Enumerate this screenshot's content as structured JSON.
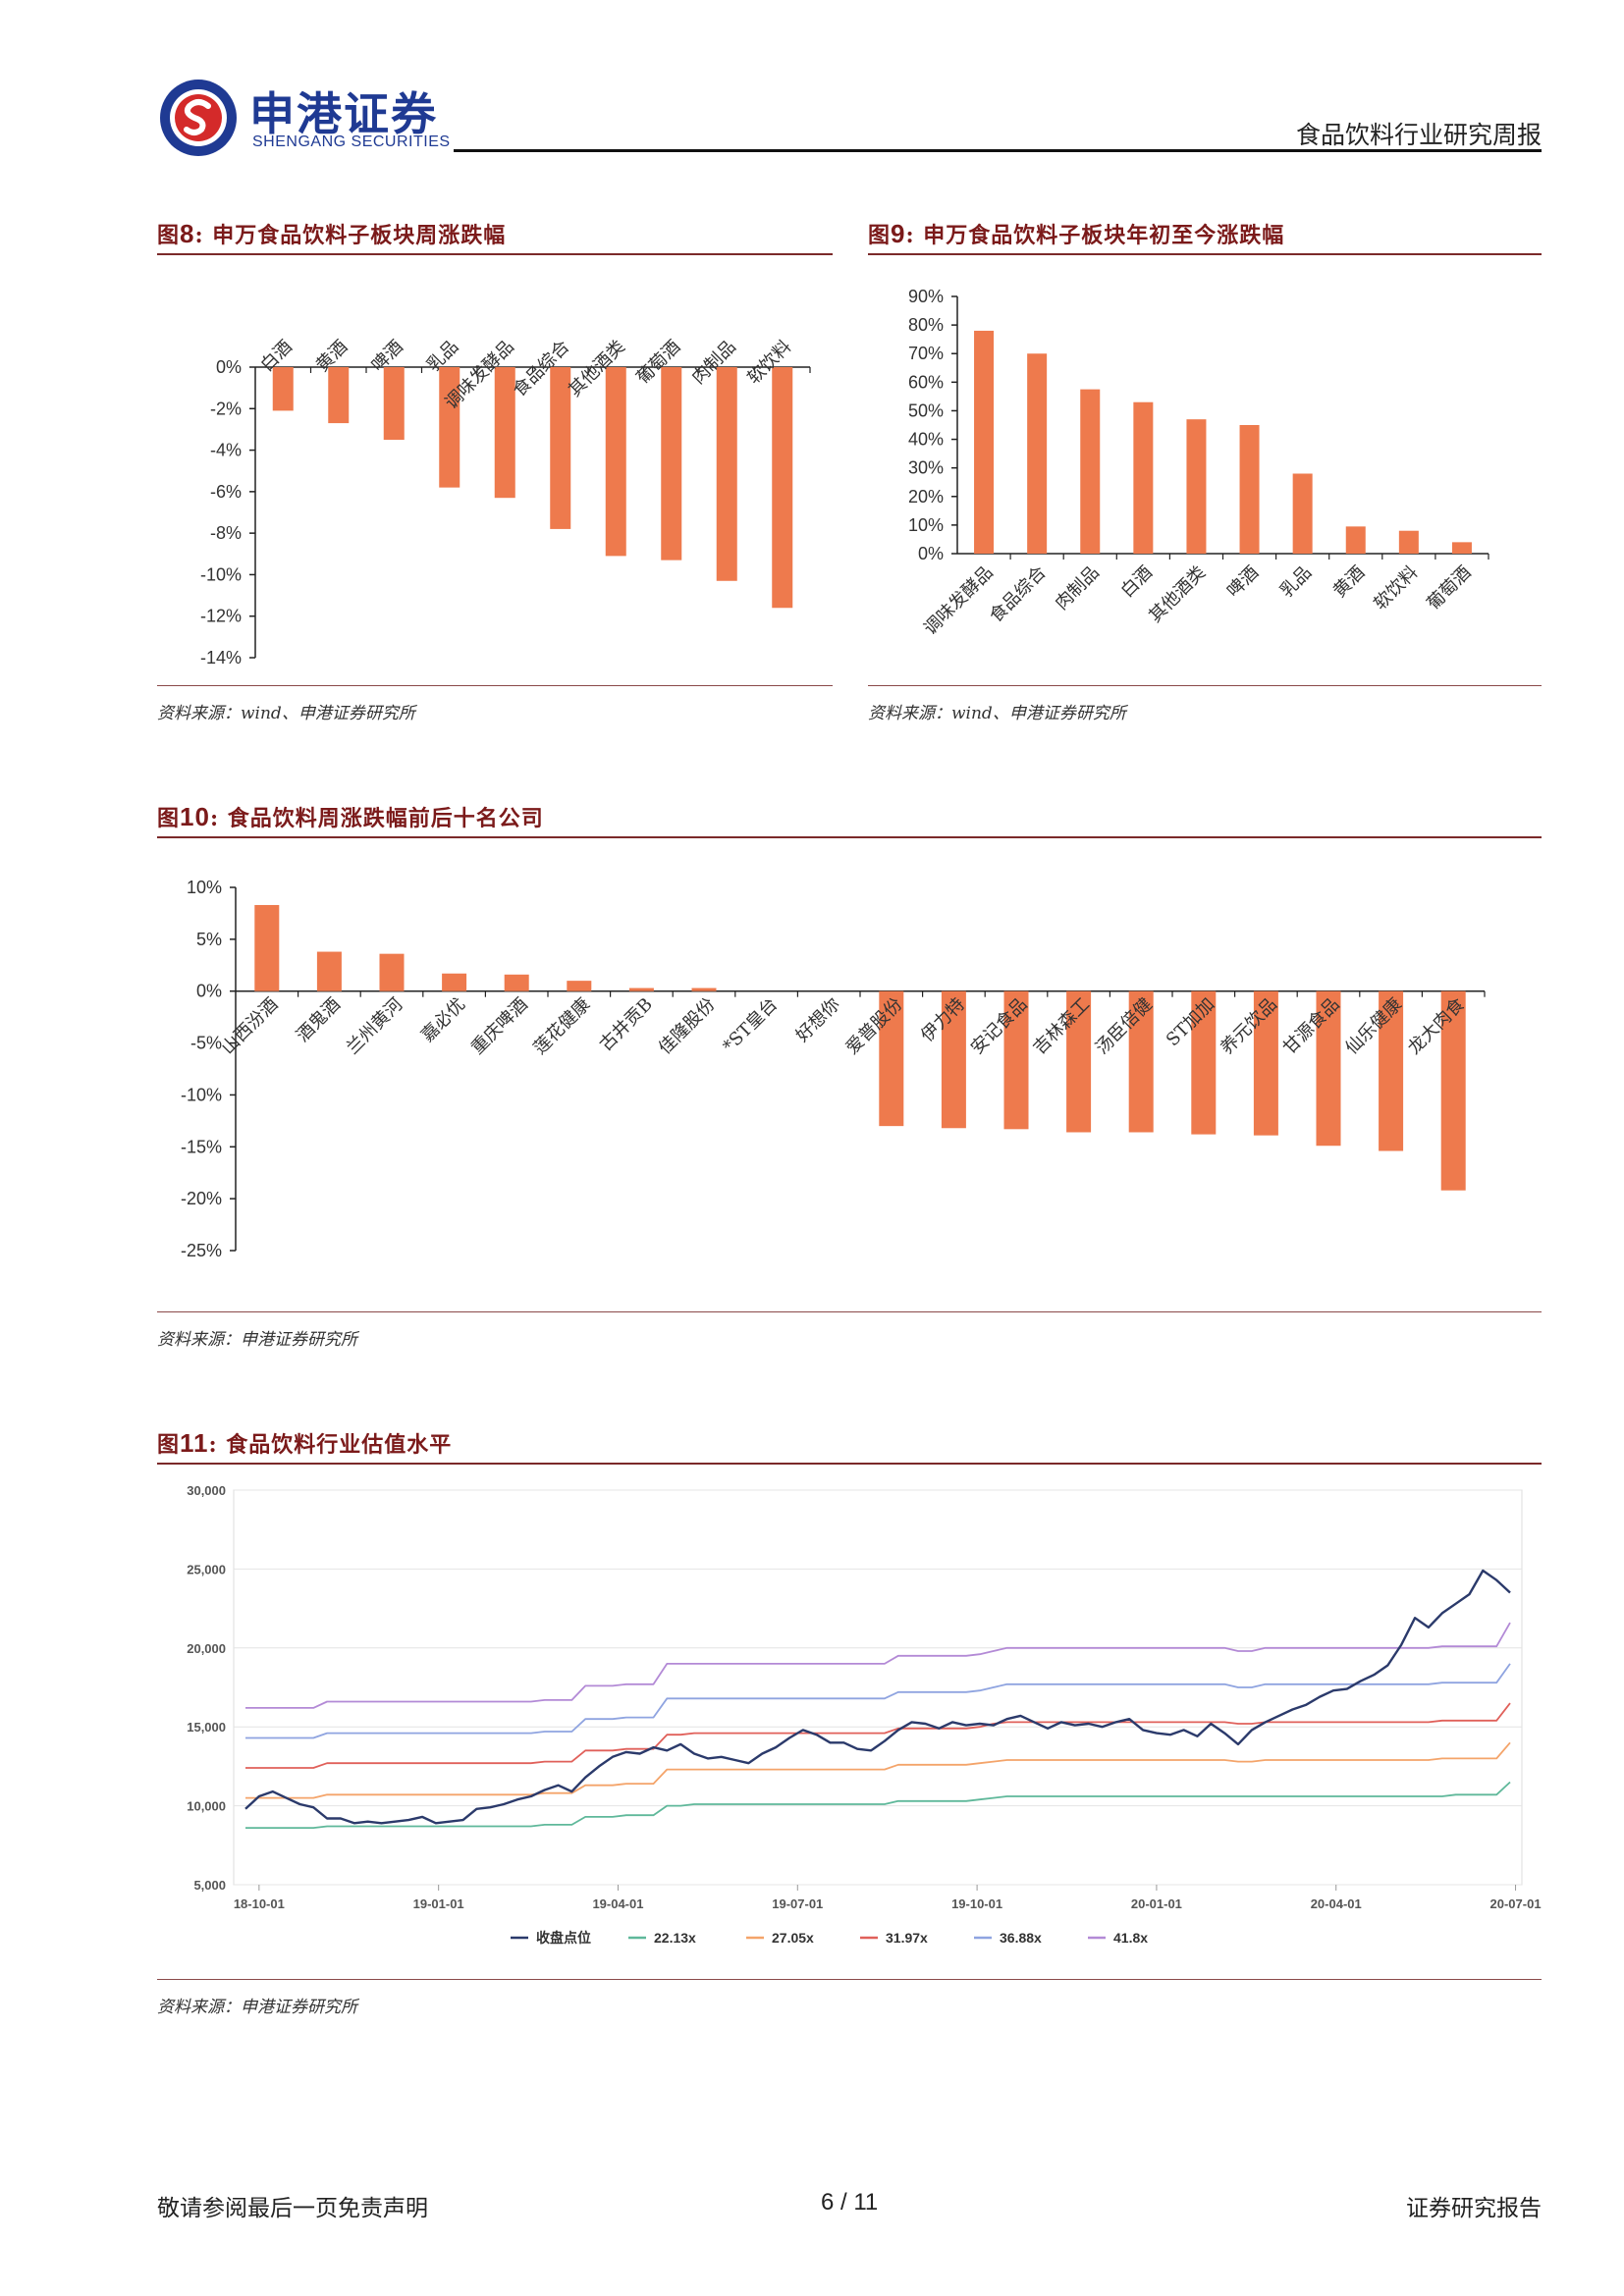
{
  "header": {
    "logo_cn": "申港证券",
    "logo_en": "SHENGANG SECURITIES",
    "report_type": "食品饮料行业研究周报"
  },
  "figures": {
    "fig8": {
      "label": "图",
      "num": "8",
      "title": ":  申万食品饮料子板块周涨跌幅",
      "source": "资料来源：wind、申港证券研究所"
    },
    "fig9": {
      "label": "图",
      "num": "9",
      "title": ":  申万食品饮料子板块年初至今涨跌幅",
      "source": "资料来源：wind、申港证券研究所"
    },
    "fig10": {
      "label": "图",
      "num": "10",
      "title": ":  食品饮料周涨跌幅前后十名公司",
      "source": "资料来源：申港证券研究所"
    },
    "fig11": {
      "label": "图",
      "num": "11",
      "title": ":  食品饮料行业估值水平",
      "source": "资料来源：申港证券研究所"
    }
  },
  "chart_data": [
    {
      "id": "fig8",
      "type": "bar",
      "categories": [
        "白酒",
        "黄酒",
        "啤酒",
        "乳品",
        "调味发酵品",
        "食品综合",
        "其他酒类",
        "葡萄酒",
        "肉制品",
        "软饮料"
      ],
      "values": [
        -2.1,
        -2.7,
        -3.5,
        -5.8,
        -6.3,
        -7.8,
        -9.1,
        -9.3,
        -10.3,
        -11.6
      ],
      "ylim": [
        -14,
        0
      ],
      "yticks": [
        0,
        -2,
        -4,
        -6,
        -8,
        -10,
        -12,
        -14
      ],
      "ytick_labels": [
        "0%",
        "-2%",
        "-4%",
        "-6%",
        "-8%",
        "-10%",
        "-12%",
        "-14%"
      ],
      "color": "#ee7a4d"
    },
    {
      "id": "fig9",
      "type": "bar",
      "categories": [
        "调味发酵品",
        "食品综合",
        "肉制品",
        "白酒",
        "其他酒类",
        "啤酒",
        "乳品",
        "黄酒",
        "软饮料",
        "葡萄酒"
      ],
      "values": [
        78,
        70,
        57.5,
        53,
        47,
        45,
        28,
        9.5,
        8,
        4
      ],
      "ylim": [
        0,
        90
      ],
      "yticks": [
        0,
        10,
        20,
        30,
        40,
        50,
        60,
        70,
        80,
        90
      ],
      "ytick_labels": [
        "0%",
        "10%",
        "20%",
        "30%",
        "40%",
        "50%",
        "60%",
        "70%",
        "80%",
        "90%"
      ],
      "color": "#ee7a4d"
    },
    {
      "id": "fig10",
      "type": "bar",
      "categories": [
        "山西汾酒",
        "酒鬼酒",
        "兰州黄河",
        "嘉必优",
        "重庆啤酒",
        "莲花健康",
        "古井贡B",
        "佳隆股份",
        "*ST皇台",
        "好想你",
        "爱普股份",
        "伊力特",
        "安记食品",
        "吉林森工",
        "汤臣倍健",
        "ST加加",
        "养元饮品",
        "甘源食品",
        "仙乐健康",
        "龙大肉食"
      ],
      "values": [
        8.3,
        3.8,
        3.6,
        1.7,
        1.6,
        1.0,
        0.3,
        0.3,
        0,
        0,
        -13.0,
        -13.2,
        -13.3,
        -13.6,
        -13.6,
        -13.8,
        -13.9,
        -14.9,
        -15.4,
        -19.2
      ],
      "ylim": [
        -25,
        10
      ],
      "yticks": [
        10,
        5,
        0,
        -5,
        -10,
        -15,
        -20,
        -25
      ],
      "ytick_labels": [
        "10%",
        "5%",
        "0%",
        "-5%",
        "-10%",
        "-15%",
        "-20%",
        "-25%"
      ],
      "color": "#ee7a4d"
    },
    {
      "id": "fig11",
      "type": "line",
      "x_ticks": [
        "18-10-01",
        "19-01-01",
        "19-04-01",
        "19-07-01",
        "19-10-01",
        "20-01-01",
        "20-04-01",
        "20-07-01"
      ],
      "ylim": [
        5000,
        30000
      ],
      "yticks": [
        5000,
        10000,
        15000,
        20000,
        25000,
        30000
      ],
      "ytick_labels": [
        "5,000",
        "10,000",
        "15,000",
        "20,000",
        "25,000",
        "30,000"
      ],
      "grid": true,
      "legend_position": "bottom",
      "series": [
        {
          "name": "收盘点位",
          "color": "#2b3a6b",
          "values": [
            9800,
            10600,
            10900,
            10500,
            10100,
            9900,
            9200,
            9200,
            8900,
            9000,
            8900,
            9000,
            9100,
            9300,
            8900,
            9000,
            9100,
            9800,
            9900,
            10100,
            10400,
            10600,
            11000,
            11300,
            10900,
            11800,
            12500,
            13100,
            13400,
            13300,
            13700,
            13500,
            13900,
            13300,
            13000,
            13100,
            12900,
            12700,
            13300,
            13700,
            14300,
            14800,
            14500,
            14000,
            14000,
            13600,
            13500,
            14100,
            14800,
            15300,
            15200,
            14900,
            15300,
            15100,
            15200,
            15100,
            15500,
            15700,
            15300,
            14900,
            15300,
            15100,
            15200,
            15000,
            15300,
            15500,
            14800,
            14600,
            14500,
            14800,
            14400,
            15200,
            14600,
            13900,
            14800,
            15300,
            15700,
            16100,
            16400,
            16900,
            17300,
            17400,
            17900,
            18300,
            18900,
            20200,
            21900,
            21300,
            22200,
            22800,
            23400,
            24900,
            24300,
            23500
          ]
        },
        {
          "name": "22.13x",
          "color": "#5fb89a",
          "values": [
            8600,
            8600,
            8600,
            8600,
            8600,
            8600,
            8700,
            8700,
            8700,
            8700,
            8700,
            8700,
            8700,
            8700,
            8700,
            8700,
            8700,
            8700,
            8700,
            8700,
            8700,
            8700,
            8800,
            8800,
            8800,
            9300,
            9300,
            9300,
            9400,
            9400,
            9400,
            10000,
            10000,
            10100,
            10100,
            10100,
            10100,
            10100,
            10100,
            10100,
            10100,
            10100,
            10100,
            10100,
            10100,
            10100,
            10100,
            10100,
            10300,
            10300,
            10300,
            10300,
            10300,
            10300,
            10400,
            10500,
            10600,
            10600,
            10600,
            10600,
            10600,
            10600,
            10600,
            10600,
            10600,
            10600,
            10600,
            10600,
            10600,
            10600,
            10600,
            10600,
            10600,
            10600,
            10600,
            10600,
            10600,
            10600,
            10600,
            10600,
            10600,
            10600,
            10600,
            10600,
            10600,
            10600,
            10600,
            10600,
            10600,
            10700,
            10700,
            10700,
            10700,
            11500
          ]
        },
        {
          "name": "27.05x",
          "color": "#f4a46a",
          "values": [
            10500,
            10500,
            10500,
            10500,
            10500,
            10500,
            10700,
            10700,
            10700,
            10700,
            10700,
            10700,
            10700,
            10700,
            10700,
            10700,
            10700,
            10700,
            10700,
            10700,
            10700,
            10700,
            10800,
            10800,
            10800,
            11300,
            11300,
            11300,
            11400,
            11400,
            11400,
            12300,
            12300,
            12300,
            12300,
            12300,
            12300,
            12300,
            12300,
            12300,
            12300,
            12300,
            12300,
            12300,
            12300,
            12300,
            12300,
            12300,
            12600,
            12600,
            12600,
            12600,
            12600,
            12600,
            12700,
            12800,
            12900,
            12900,
            12900,
            12900,
            12900,
            12900,
            12900,
            12900,
            12900,
            12900,
            12900,
            12900,
            12900,
            12900,
            12900,
            12900,
            12900,
            12800,
            12800,
            12900,
            12900,
            12900,
            12900,
            12900,
            12900,
            12900,
            12900,
            12900,
            12900,
            12900,
            12900,
            12900,
            13000,
            13000,
            13000,
            13000,
            13000,
            14000
          ]
        },
        {
          "name": "31.97x",
          "color": "#e0605a",
          "values": [
            12400,
            12400,
            12400,
            12400,
            12400,
            12400,
            12700,
            12700,
            12700,
            12700,
            12700,
            12700,
            12700,
            12700,
            12700,
            12700,
            12700,
            12700,
            12700,
            12700,
            12700,
            12700,
            12800,
            12800,
            12800,
            13500,
            13500,
            13500,
            13600,
            13600,
            13600,
            14500,
            14500,
            14600,
            14600,
            14600,
            14600,
            14600,
            14600,
            14600,
            14600,
            14600,
            14600,
            14600,
            14600,
            14600,
            14600,
            14600,
            14900,
            14900,
            14900,
            14900,
            14900,
            14900,
            15000,
            15200,
            15300,
            15300,
            15300,
            15300,
            15300,
            15300,
            15300,
            15300,
            15300,
            15300,
            15300,
            15300,
            15300,
            15300,
            15300,
            15300,
            15300,
            15200,
            15200,
            15300,
            15300,
            15300,
            15300,
            15300,
            15300,
            15300,
            15300,
            15300,
            15300,
            15300,
            15300,
            15300,
            15400,
            15400,
            15400,
            15400,
            15400,
            16500
          ]
        },
        {
          "name": "36.88x",
          "color": "#8fa4e0",
          "values": [
            14300,
            14300,
            14300,
            14300,
            14300,
            14300,
            14600,
            14600,
            14600,
            14600,
            14600,
            14600,
            14600,
            14600,
            14600,
            14600,
            14600,
            14600,
            14600,
            14600,
            14600,
            14600,
            14700,
            14700,
            14700,
            15500,
            15500,
            15500,
            15600,
            15600,
            15600,
            16800,
            16800,
            16800,
            16800,
            16800,
            16800,
            16800,
            16800,
            16800,
            16800,
            16800,
            16800,
            16800,
            16800,
            16800,
            16800,
            16800,
            17200,
            17200,
            17200,
            17200,
            17200,
            17200,
            17300,
            17500,
            17700,
            17700,
            17700,
            17700,
            17700,
            17700,
            17700,
            17700,
            17700,
            17700,
            17700,
            17700,
            17700,
            17700,
            17700,
            17700,
            17700,
            17500,
            17500,
            17700,
            17700,
            17700,
            17700,
            17700,
            17700,
            17700,
            17700,
            17700,
            17700,
            17700,
            17700,
            17700,
            17800,
            17800,
            17800,
            17800,
            17800,
            19000
          ]
        },
        {
          "name": "41.8x",
          "color": "#b38ad6",
          "values": [
            16200,
            16200,
            16200,
            16200,
            16200,
            16200,
            16600,
            16600,
            16600,
            16600,
            16600,
            16600,
            16600,
            16600,
            16600,
            16600,
            16600,
            16600,
            16600,
            16600,
            16600,
            16600,
            16700,
            16700,
            16700,
            17600,
            17600,
            17600,
            17700,
            17700,
            17700,
            19000,
            19000,
            19000,
            19000,
            19000,
            19000,
            19000,
            19000,
            19000,
            19000,
            19000,
            19000,
            19000,
            19000,
            19000,
            19000,
            19000,
            19500,
            19500,
            19500,
            19500,
            19500,
            19500,
            19600,
            19800,
            20000,
            20000,
            20000,
            20000,
            20000,
            20000,
            20000,
            20000,
            20000,
            20000,
            20000,
            20000,
            20000,
            20000,
            20000,
            20000,
            20000,
            19800,
            19800,
            20000,
            20000,
            20000,
            20000,
            20000,
            20000,
            20000,
            20000,
            20000,
            20000,
            20000,
            20000,
            20000,
            20100,
            20100,
            20100,
            20100,
            20100,
            21600
          ]
        }
      ]
    }
  ],
  "footer": {
    "left": "敬请参阅最后一页免责声明",
    "page": "6 / 11",
    "right": "证券研究报告"
  }
}
